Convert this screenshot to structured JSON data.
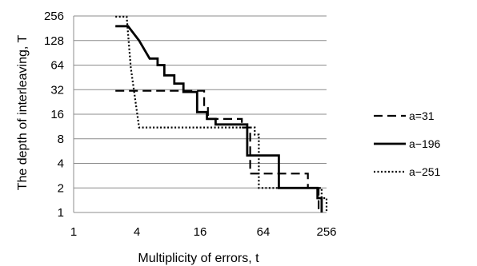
{
  "chart_data": {
    "type": "line",
    "xlabel": "Multiplicity of errors, t",
    "ylabel": "The depth of interleaving,  T",
    "x_scale": "log2",
    "y_scale": "log2",
    "xlim": [
      1,
      256
    ],
    "ylim": [
      1,
      256
    ],
    "x_ticks": [
      1,
      4,
      16,
      64,
      256
    ],
    "y_ticks": [
      1,
      2,
      4,
      8,
      16,
      32,
      64,
      128,
      256
    ],
    "grid": "horizontal",
    "legend_position": "right",
    "series": [
      {
        "name": "a=31",
        "style": "dashed",
        "x": [
          2.5,
          17.5,
          17.5,
          19,
          19,
          40,
          40,
          48,
          48,
          80,
          80,
          170,
          170,
          215,
          215
        ],
        "y": [
          31,
          31,
          20,
          20,
          14,
          14,
          11,
          11,
          3,
          3,
          3,
          3,
          2,
          2,
          1
        ]
      },
      {
        "name": "a−196",
        "style": "solid",
        "x": [
          2.5,
          3.3,
          4.2,
          5.3,
          6.3,
          6.3,
          7.3,
          7.3,
          9.1,
          9.1,
          11.1,
          11.1,
          15,
          15,
          18.6,
          18.6,
          22.5,
          22.5,
          45,
          45,
          90,
          90,
          210,
          210,
          230,
          230
        ],
        "y": [
          192,
          192,
          128,
          77,
          77,
          64,
          64,
          48,
          48,
          38,
          38,
          30,
          30,
          17,
          17,
          14,
          14,
          12,
          12,
          5,
          5,
          2,
          2,
          1.5,
          1.5,
          1
        ]
      },
      {
        "name": "a−251",
        "style": "dotted",
        "x": [
          2.5,
          3.2,
          3.5,
          4.2,
          4.2,
          53,
          53,
          58,
          58,
          230,
          230,
          256,
          256
        ],
        "y": [
          251,
          251,
          60,
          11,
          11,
          11,
          9,
          9,
          2,
          2,
          1.5,
          1.5,
          1
        ]
      }
    ]
  }
}
